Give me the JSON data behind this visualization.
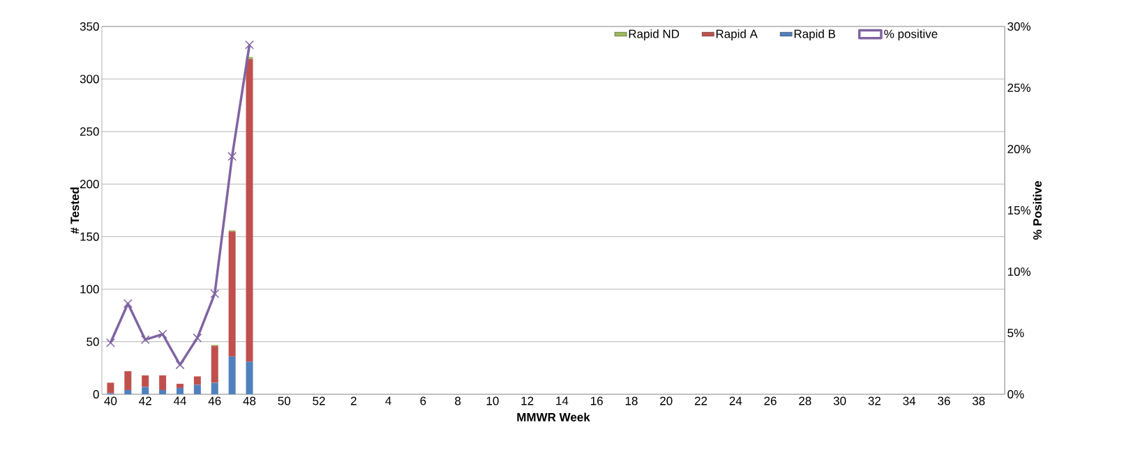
{
  "chart_data": {
    "type": "bar",
    "stacked": true,
    "xlabel": "MMWR Week",
    "ylabel": "# Tested",
    "y2label": "% Positive",
    "categories": [
      "40",
      null,
      "42",
      null,
      "44",
      null,
      "46",
      null,
      "48",
      null,
      "50",
      null,
      "52",
      null,
      "2",
      null,
      "4",
      null,
      "6",
      null,
      "8",
      null,
      "10",
      null,
      "12",
      null,
      "14",
      null,
      "16",
      null,
      "18",
      null,
      "20",
      null,
      "22",
      null,
      "24",
      null,
      "26",
      null,
      "28",
      null,
      "30",
      null,
      "32",
      null,
      "34",
      null,
      "36",
      null,
      "38",
      null
    ],
    "series": [
      {
        "name": "Rapid B",
        "color": "#4f81bd",
        "values": [
          1,
          4,
          7,
          4,
          6,
          9,
          11,
          36,
          31,
          null,
          null,
          null,
          null,
          null,
          null,
          null,
          null,
          null,
          null,
          null,
          null,
          null,
          null,
          null,
          null,
          null,
          null,
          null,
          null,
          null,
          null,
          null,
          null,
          null,
          null,
          null,
          null,
          null,
          null,
          null,
          null,
          null,
          null,
          null,
          null,
          null,
          null,
          null,
          null,
          null,
          null,
          null
        ]
      },
      {
        "name": "Rapid A",
        "color": "#c0504d",
        "values": [
          10,
          18,
          11,
          14,
          4,
          8,
          35,
          119,
          288,
          null,
          null,
          null,
          null,
          null,
          null,
          null,
          null,
          null,
          null,
          null,
          null,
          null,
          null,
          null,
          null,
          null,
          null,
          null,
          null,
          null,
          null,
          null,
          null,
          null,
          null,
          null,
          null,
          null,
          null,
          null,
          null,
          null,
          null,
          null,
          null,
          null,
          null,
          null,
          null,
          null,
          null,
          null
        ]
      },
      {
        "name": "Rapid ND",
        "color": "#9bbb59",
        "values": [
          0,
          0,
          0,
          0,
          0,
          0,
          1,
          1,
          2,
          null,
          null,
          null,
          null,
          null,
          null,
          null,
          null,
          null,
          null,
          null,
          null,
          null,
          null,
          null,
          null,
          null,
          null,
          null,
          null,
          null,
          null,
          null,
          null,
          null,
          null,
          null,
          null,
          null,
          null,
          null,
          null,
          null,
          null,
          null,
          null,
          null,
          null,
          null,
          null,
          null,
          null,
          null
        ]
      },
      {
        "name": "% positive",
        "type": "line",
        "axis": "y2",
        "color": "#8064a2",
        "values": [
          4.2,
          7.4,
          4.45,
          4.9,
          2.4,
          4.6,
          8.2,
          19.4,
          28.5,
          null,
          null,
          null,
          null,
          null,
          null,
          null,
          null,
          null,
          null,
          null,
          null,
          null,
          null,
          null,
          null,
          null,
          null,
          null,
          null,
          null,
          null,
          null,
          null,
          null,
          null,
          null,
          null,
          null,
          null,
          null,
          null,
          null,
          null,
          null,
          null,
          null,
          null,
          null,
          null,
          null,
          null,
          null
        ]
      }
    ],
    "ylim": [
      0,
      350
    ],
    "yticks": [
      0,
      50,
      100,
      150,
      200,
      250,
      300,
      350
    ],
    "y2lim": [
      0,
      30
    ],
    "y2ticks": [
      {
        "value": 0,
        "label": "0%"
      },
      {
        "value": 5,
        "label": "5%"
      },
      {
        "value": 10,
        "label": "10%"
      },
      {
        "value": 15,
        "label": "15%"
      },
      {
        "value": 20,
        "label": "20%"
      },
      {
        "value": 25,
        "label": "25%"
      },
      {
        "value": 30,
        "label": "30%"
      }
    ],
    "grid": "y",
    "legend": "top right",
    "marker": "cross",
    "line_style": "solid"
  }
}
